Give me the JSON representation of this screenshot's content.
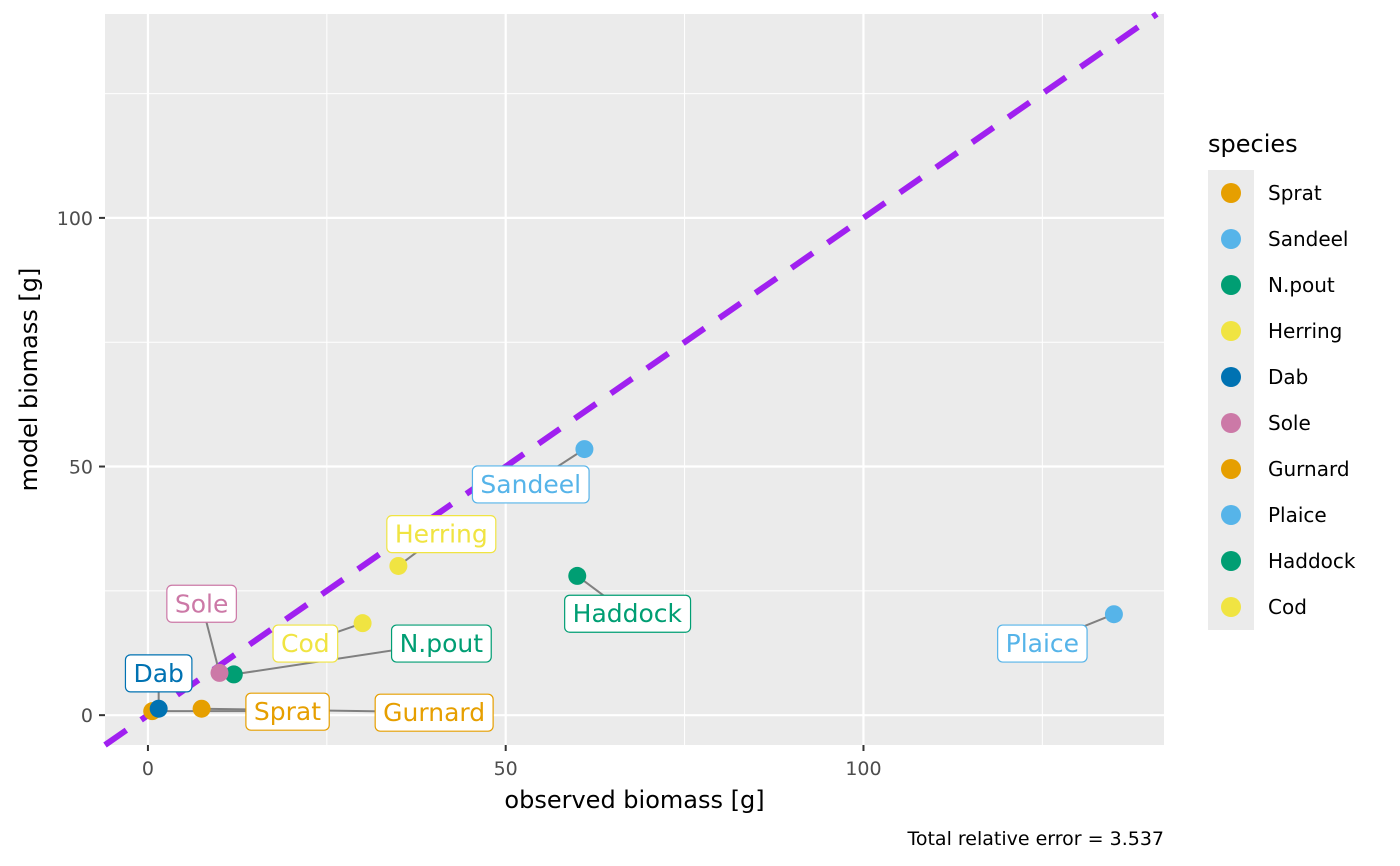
{
  "colors": {
    "panel": "#ebebeb",
    "grid_major": "#ffffff",
    "identity_line": "#a020f0",
    "connector": "#808080"
  },
  "chart_data": {
    "type": "scatter",
    "xlabel": "observed biomass [g]",
    "ylabel": "model biomass [g]",
    "caption": "Total relative error = 3.537",
    "xlim": [
      -6,
      142
    ],
    "ylim": [
      -6,
      141
    ],
    "x_ticks": [
      0,
      50,
      100
    ],
    "y_ticks": [
      0,
      50,
      100
    ],
    "grid": true,
    "identity_line": {
      "style": "dashed",
      "slope": 1,
      "intercept": 0
    },
    "legend": {
      "title": "species",
      "position": "right"
    },
    "points": [
      {
        "species": "Sprat",
        "x": 0.6,
        "y": 0.8,
        "color": "#e69f00",
        "label_x": 19.5,
        "label_y": 0.8
      },
      {
        "species": "Sandeel",
        "x": 61,
        "y": 53.5,
        "color": "#56b4e9",
        "label_x": 53.5,
        "label_y": 46.5
      },
      {
        "species": "N.pout",
        "x": 12,
        "y": 8.2,
        "color": "#009e73",
        "label_x": 41,
        "label_y": 14.5
      },
      {
        "species": "Herring",
        "x": 35,
        "y": 30,
        "color": "#f0e442",
        "label_x": 41,
        "label_y": 36.5
      },
      {
        "species": "Dab",
        "x": 1.5,
        "y": 1.3,
        "color": "#0072b2",
        "label_x": 1.5,
        "label_y": 8.5
      },
      {
        "species": "Sole",
        "x": 10,
        "y": 8.5,
        "color": "#cc79a7",
        "label_x": 7.5,
        "label_y": 22.5
      },
      {
        "species": "Gurnard",
        "x": 7.5,
        "y": 1.3,
        "color": "#e69f00",
        "label_x": 40,
        "label_y": 0.6
      },
      {
        "species": "Plaice",
        "x": 135,
        "y": 20.3,
        "color": "#56b4e9",
        "label_x": 125,
        "label_y": 14.5
      },
      {
        "species": "Haddock",
        "x": 60,
        "y": 28,
        "color": "#009e73",
        "label_x": 67,
        "label_y": 20.5
      },
      {
        "species": "Cod",
        "x": 30,
        "y": 18.5,
        "color": "#f0e442",
        "label_x": 22,
        "label_y": 14.5
      }
    ]
  }
}
